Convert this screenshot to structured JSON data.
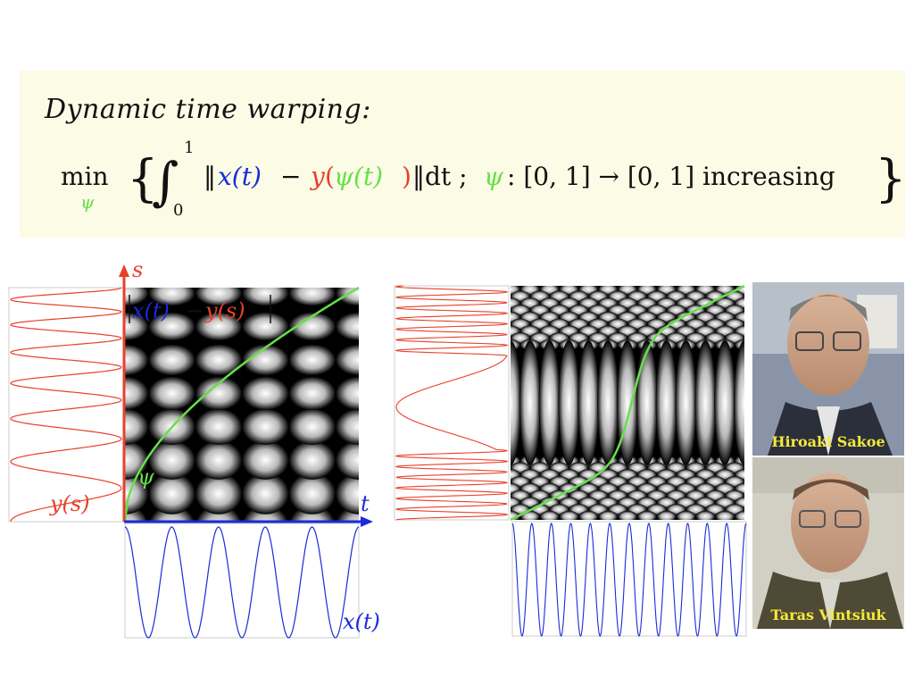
{
  "title": "Dynamic time warping:",
  "formula": {
    "min": "min",
    "psi": "ψ",
    "integral_upper": "1",
    "integral_lower": "0",
    "x_t": "x(t)",
    "minus": "−",
    "y": "y",
    "psi_t": "ψ(t)",
    "dt": "‖dt ;",
    "norm_open": "‖",
    "domain_text": ": [0, 1] → [0, 1] increasing",
    "brace_open": "{",
    "brace_close": "}"
  },
  "left_figure": {
    "axis_s": "s",
    "axis_t": "t",
    "cost_label_x": "x(t)",
    "cost_label_minus": "−",
    "cost_label_y": "y(s)",
    "warp_label": "ψ",
    "ys_label": "y(s)",
    "xt_label": "x(t)"
  },
  "right_figure": {},
  "photos": [
    {
      "name": "Hiroaki Sakoe"
    },
    {
      "name": "Taras Vintsiuk"
    }
  ],
  "colors": {
    "x_blue": "#1a2bd9",
    "y_red": "#e8402a",
    "psi_green": "#66e04a",
    "box_bg": "#fbfbe6",
    "caption_yellow": "#f4ea3a"
  }
}
